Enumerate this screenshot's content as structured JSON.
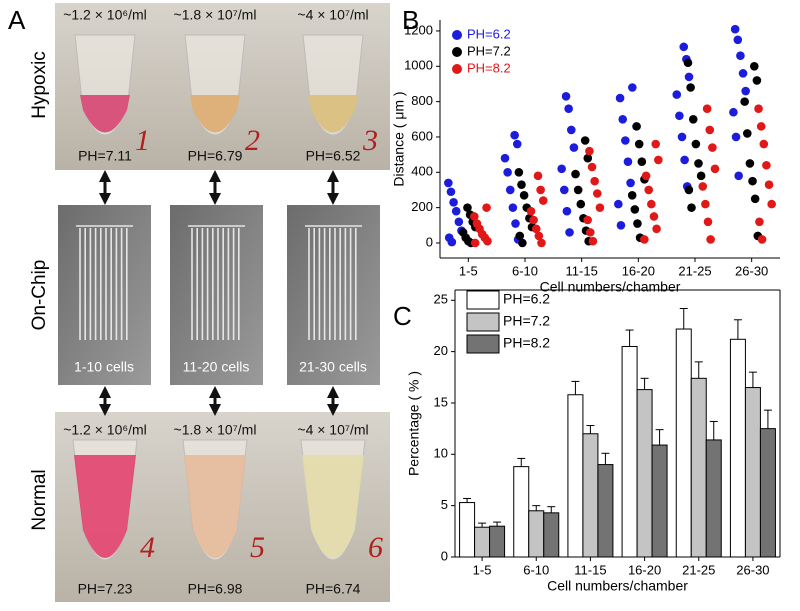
{
  "panel_a": {
    "letter": "A",
    "row_labels": [
      "Hypoxic",
      "On-Chip",
      "Normal"
    ],
    "hypoxic": {
      "concentrations": [
        "~1.2 × 10⁶/ml",
        "~1.8 × 10⁷/ml",
        "~4 × 10⁷/ml"
      ],
      "ph": [
        "PH=7.11",
        "PH=6.79",
        "PH=6.52"
      ],
      "tube_numbers": [
        "1",
        "2",
        "3"
      ]
    },
    "chip": {
      "cells": [
        "1-10 cells",
        "11-20 cells",
        "21-30 cells"
      ]
    },
    "normal": {
      "concentrations": [
        "~1.2 × 10⁶/ml",
        "~1.8 × 10⁷/ml",
        "~4 × 10⁷/ml"
      ],
      "ph": [
        "PH=7.23",
        "PH=6.98",
        "PH=6.74"
      ],
      "tube_numbers": [
        "4",
        "5",
        "6"
      ]
    }
  },
  "chart_data": [
    {
      "type": "scatter",
      "panel": "B",
      "x_label": "Cell numbers/chamber",
      "y_label": "Distance ( μm )",
      "categories": [
        "1-5",
        "6-10",
        "11-15",
        "16-20",
        "21-25",
        "26-30"
      ],
      "ylim": [
        -85,
        1262
      ],
      "yticks": [
        0,
        200,
        400,
        600,
        800,
        1000,
        1200
      ],
      "legend": "top-left",
      "series": [
        {
          "name": "PH=6.2",
          "color": "#1c1cdc",
          "values": [
            [
              340,
              290,
              230,
              180,
              120,
              70,
              30,
              5
            ],
            [
              610,
              560,
              480,
              400,
              300,
              200,
              110,
              20
            ],
            [
              830,
              760,
              640,
              540,
              420,
              300,
              180,
              60
            ],
            [
              880,
              820,
              700,
              580,
              460,
              340,
              220,
              100
            ],
            [
              1110,
              1040,
              940,
              840,
              720,
              600,
              470,
              320
            ],
            [
              1210,
              1150,
              1060,
              960,
              860,
              740,
              600,
              380
            ]
          ]
        },
        {
          "name": "PH=7.2",
          "color": "#000000",
          "values": [
            [
              200,
              160,
              120,
              90,
              60,
              30,
              10,
              0
            ],
            [
              400,
              330,
              270,
              200,
              140,
              90,
              40,
              0
            ],
            [
              580,
              480,
              390,
              300,
              220,
              140,
              70,
              10
            ],
            [
              660,
              560,
              460,
              360,
              270,
              190,
              110,
              30
            ],
            [
              1020,
              880,
              700,
              560,
              450,
              380,
              300,
              200
            ],
            [
              1000,
              920,
              800,
              620,
              450,
              350,
              250,
              40
            ]
          ]
        },
        {
          "name": "PH=8.2",
          "color": "#e01818",
          "values": [
            [
              200,
              150,
              110,
              80,
              50,
              30,
              10,
              0
            ],
            [
              380,
              300,
              240,
              180,
              130,
              80,
              40,
              0
            ],
            [
              520,
              430,
              350,
              280,
              200,
              130,
              60,
              10
            ],
            [
              560,
              470,
              380,
              300,
              220,
              150,
              80,
              20
            ],
            [
              760,
              640,
              540,
              420,
              320,
              220,
              120,
              20
            ],
            [
              760,
              660,
              560,
              440,
              330,
              220,
              120,
              20
            ]
          ]
        }
      ]
    },
    {
      "type": "bar",
      "panel": "C",
      "x_label": "Cell numbers/chamber",
      "y_label": "Percentage ( % )",
      "categories": [
        "1-5",
        "6-10",
        "11-15",
        "16-20",
        "21-25",
        "26-30"
      ],
      "ylim": [
        0,
        26
      ],
      "yticks": [
        0,
        5,
        10,
        15,
        20,
        25
      ],
      "legend": "top-left",
      "series": [
        {
          "name": "PH=6.2",
          "color": "#ffffff",
          "values": [
            5.3,
            8.8,
            15.8,
            20.5,
            22.2,
            21.2
          ],
          "errors": [
            0.4,
            0.8,
            1.3,
            1.6,
            2.0,
            1.9
          ]
        },
        {
          "name": "PH=7.2",
          "color": "#c4c4c4",
          "values": [
            2.9,
            4.5,
            12.0,
            16.3,
            17.4,
            16.5
          ],
          "errors": [
            0.4,
            0.5,
            0.8,
            1.1,
            1.6,
            1.5
          ]
        },
        {
          "name": "PH=8.2",
          "color": "#737373",
          "values": [
            3.0,
            4.3,
            9.0,
            10.9,
            11.4,
            12.5
          ],
          "errors": [
            0.4,
            0.6,
            1.1,
            1.5,
            1.8,
            1.8
          ]
        }
      ]
    }
  ]
}
